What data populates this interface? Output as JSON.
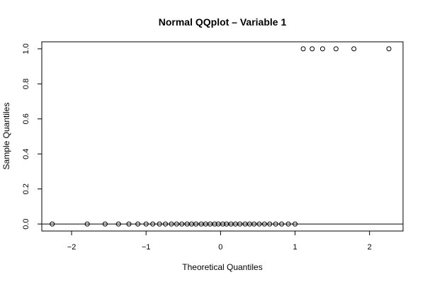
{
  "chart_data": {
    "type": "scatter",
    "title": "Normal QQplot – Variable 1",
    "xlabel": "Theoretical Quantiles",
    "ylabel": "Sample Quantiles",
    "xlim": [
      -2.4,
      2.45
    ],
    "ylim": [
      -0.04,
      1.04
    ],
    "x_ticks": [
      -2,
      -1,
      0,
      1,
      2
    ],
    "x_tick_labels": [
      "−2",
      "−1",
      "0",
      "1",
      "2"
    ],
    "y_ticks": [
      0.0,
      0.2,
      0.4,
      0.6,
      0.8,
      1.0
    ],
    "y_tick_labels": [
      "0.0",
      "0.2",
      "0.4",
      "0.6",
      "0.8",
      "1.0"
    ],
    "grid": false,
    "reference_line_y": 0,
    "marker": "open-circle",
    "point_color": "#000000",
    "points": [
      {
        "x": -2.26,
        "y": 0
      },
      {
        "x": -1.79,
        "y": 0
      },
      {
        "x": -1.55,
        "y": 0
      },
      {
        "x": -1.37,
        "y": 0
      },
      {
        "x": -1.23,
        "y": 0
      },
      {
        "x": -1.11,
        "y": 0
      },
      {
        "x": -1.0,
        "y": 0
      },
      {
        "x": -0.91,
        "y": 0
      },
      {
        "x": -0.82,
        "y": 0
      },
      {
        "x": -0.74,
        "y": 0
      },
      {
        "x": -0.66,
        "y": 0
      },
      {
        "x": -0.59,
        "y": 0
      },
      {
        "x": -0.52,
        "y": 0
      },
      {
        "x": -0.45,
        "y": 0
      },
      {
        "x": -0.39,
        "y": 0
      },
      {
        "x": -0.33,
        "y": 0
      },
      {
        "x": -0.26,
        "y": 0
      },
      {
        "x": -0.2,
        "y": 0
      },
      {
        "x": -0.14,
        "y": 0
      },
      {
        "x": -0.08,
        "y": 0
      },
      {
        "x": -0.03,
        "y": 0
      },
      {
        "x": 0.03,
        "y": 0
      },
      {
        "x": 0.08,
        "y": 0
      },
      {
        "x": 0.14,
        "y": 0
      },
      {
        "x": 0.2,
        "y": 0
      },
      {
        "x": 0.26,
        "y": 0
      },
      {
        "x": 0.33,
        "y": 0
      },
      {
        "x": 0.39,
        "y": 0
      },
      {
        "x": 0.45,
        "y": 0
      },
      {
        "x": 0.52,
        "y": 0
      },
      {
        "x": 0.59,
        "y": 0
      },
      {
        "x": 0.66,
        "y": 0
      },
      {
        "x": 0.74,
        "y": 0
      },
      {
        "x": 0.82,
        "y": 0
      },
      {
        "x": 0.91,
        "y": 0
      },
      {
        "x": 1.0,
        "y": 0
      },
      {
        "x": 1.11,
        "y": 1
      },
      {
        "x": 1.23,
        "y": 1
      },
      {
        "x": 1.37,
        "y": 1
      },
      {
        "x": 1.55,
        "y": 1
      },
      {
        "x": 1.79,
        "y": 1
      },
      {
        "x": 2.26,
        "y": 1
      }
    ]
  }
}
